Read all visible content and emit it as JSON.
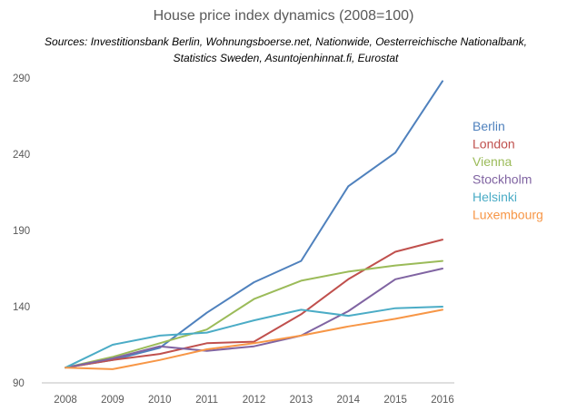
{
  "chart_data": {
    "type": "line",
    "title": "House price index dynamics (2008=100)",
    "subtitle": "Sources: Investitionsbank Berlin, Wohnungsboerse.net, Nationwide, Oesterreichische Nationalbank, Statistics Sweden, Asuntojenhinnat.fi, Eurostat",
    "xlabel": "",
    "ylabel": "",
    "x": [
      "2008",
      "2009",
      "2010",
      "2011",
      "2012",
      "2013",
      "2014",
      "2015",
      "2016"
    ],
    "ylim": [
      90,
      290
    ],
    "yticks": [
      90,
      140,
      190,
      240,
      290
    ],
    "grid": false,
    "legend_position": "right",
    "series": [
      {
        "name": "Berlin",
        "color": "#4F81BD",
        "values": [
          100,
          105,
          113,
          136,
          156,
          170,
          219,
          241,
          288
        ]
      },
      {
        "name": "London",
        "color": "#C0504D",
        "values": [
          100,
          105,
          109,
          116,
          117,
          135,
          158,
          176,
          184
        ]
      },
      {
        "name": "Vienna",
        "color": "#9BBB59",
        "values": [
          100,
          107,
          116,
          125,
          145,
          157,
          163,
          167,
          170
        ]
      },
      {
        "name": "Stockholm",
        "color": "#8064A2",
        "values": [
          100,
          106,
          114,
          111,
          114,
          121,
          137,
          158,
          165
        ]
      },
      {
        "name": "Helsinki",
        "color": "#4BACC6",
        "values": [
          100,
          115,
          121,
          123,
          131,
          138,
          134,
          139,
          140
        ]
      },
      {
        "name": "Luxembourg",
        "color": "#F79646",
        "values": [
          100,
          99,
          105,
          112,
          116,
          121,
          127,
          132,
          138
        ]
      }
    ]
  }
}
